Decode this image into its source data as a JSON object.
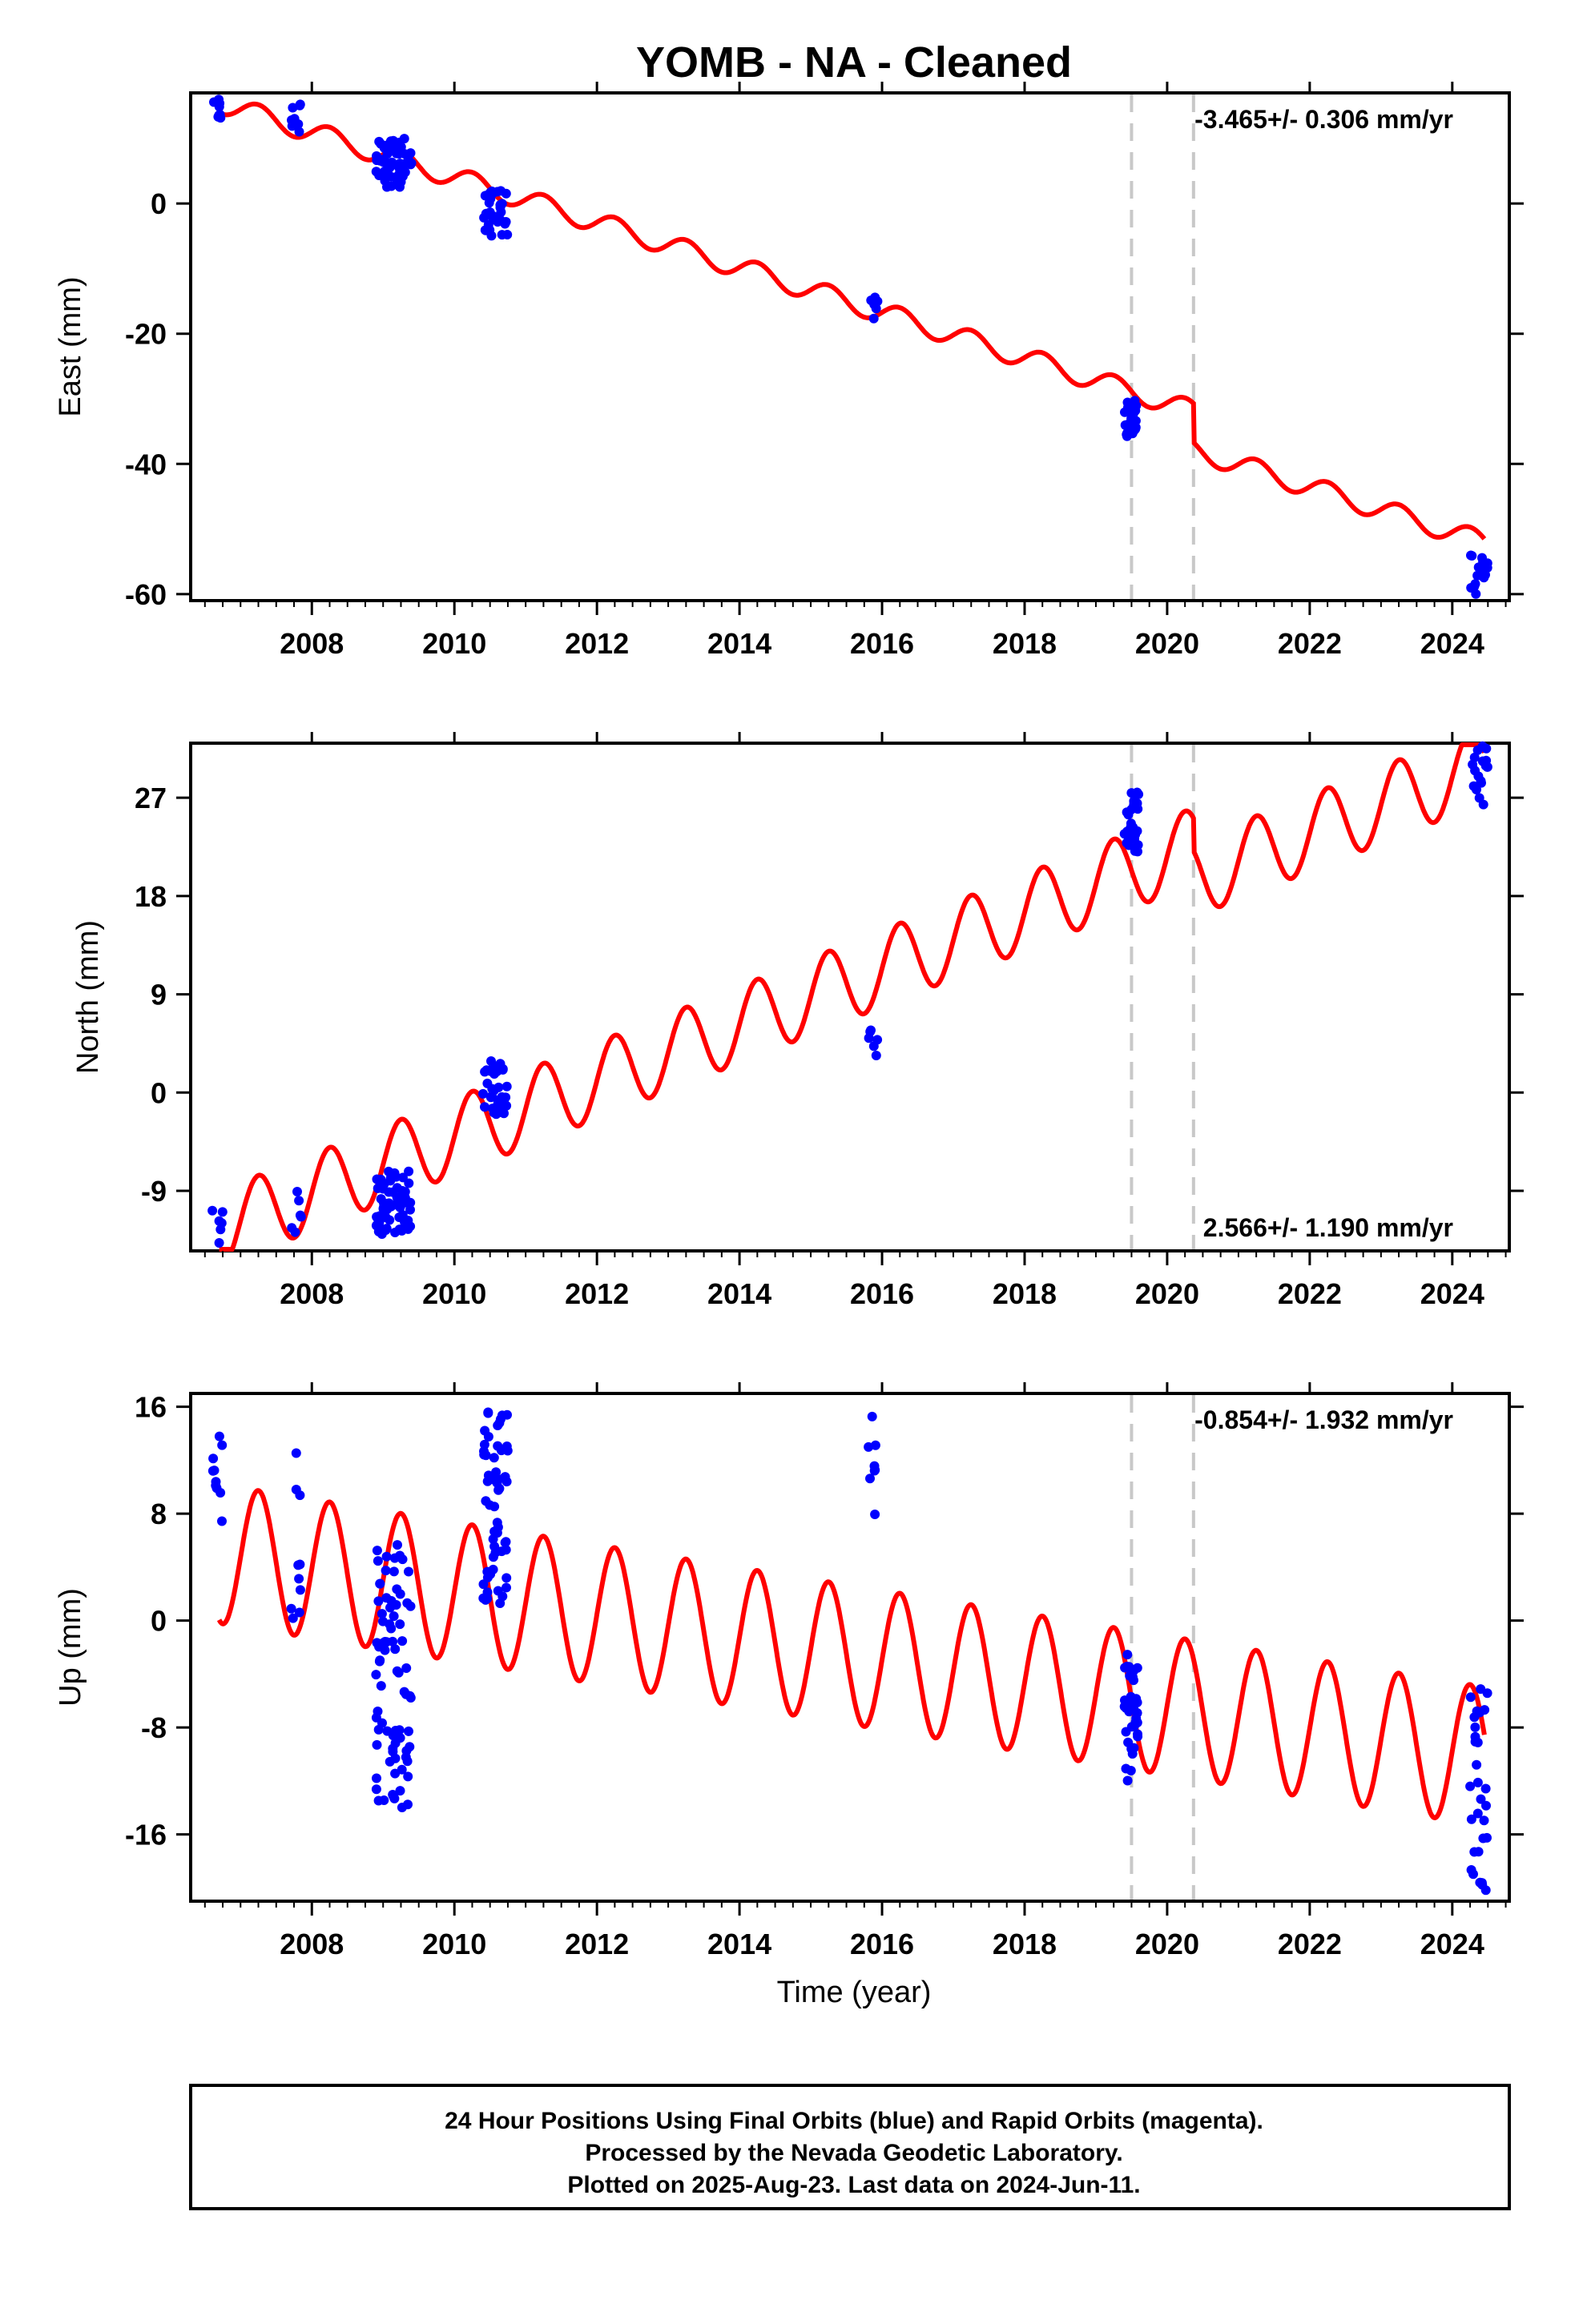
{
  "title": "YOMB  - NA - Cleaned",
  "colors": {
    "final_orbits": "#0000ff",
    "model": "#ff0000",
    "offset_line": "#c8c8c8",
    "frame": "#000000"
  },
  "x_axis": {
    "label": "Time (year)",
    "range": [
      2006.3,
      2024.8
    ],
    "ticks": [
      2008,
      2010,
      2012,
      2014,
      2016,
      2018,
      2020,
      2022,
      2024
    ]
  },
  "chart_data": [
    {
      "type": "scatter",
      "ylabel": "East (mm)",
      "ylim": [
        -61,
        17
      ],
      "yticks": [
        -60,
        -40,
        -20,
        0
      ],
      "rate_text": "-3.465+/- 0.306 mm/yr",
      "rate_position": "top-right",
      "offset_epochs": [
        2019.5,
        2020.37
      ],
      "model_line": {
        "name": "",
        "rate_mm_per_yr": -3.465,
        "intercept_at_2006_7": 15.5,
        "annual_amplitude": 1.6,
        "step_at_2020_37": -6.0
      },
      "clusters": [
        {
          "x": [
            2006.6,
            2006.75
          ],
          "y": [
            12.5,
            16
          ],
          "count": 8
        },
        {
          "x": [
            2007.7,
            2007.85
          ],
          "y": [
            10,
            16
          ],
          "count": 10
        },
        {
          "x": [
            2008.9,
            2009.4
          ],
          "y": [
            2.5,
            10
          ],
          "count": 60
        },
        {
          "x": [
            2010.4,
            2010.75
          ],
          "y": [
            -5,
            2
          ],
          "count": 35
        },
        {
          "x": [
            2015.8,
            2015.95
          ],
          "y": [
            -18,
            -14
          ],
          "count": 6
        },
        {
          "x": [
            2019.4,
            2019.6
          ],
          "y": [
            -36,
            -30
          ],
          "count": 25
        },
        {
          "x": [
            2024.25,
            2024.5
          ],
          "y": [
            -60,
            -54
          ],
          "count": 18
        }
      ]
    },
    {
      "type": "scatter",
      "ylabel": "North (mm)",
      "ylim": [
        -14.5,
        32
      ],
      "yticks": [
        -9,
        0,
        9,
        18,
        27
      ],
      "rate_text": "2.566+/- 1.190 mm/yr",
      "rate_position": "bottom-right",
      "offset_epochs": [
        2019.5,
        2020.37
      ],
      "model_line": {
        "name": "",
        "rate_mm_per_yr": 2.566,
        "intercept_at_2006_7": -12.5,
        "annual_amplitude": 3.5,
        "step_at_2020_37": -3.0
      },
      "clusters": [
        {
          "x": [
            2006.6,
            2006.75
          ],
          "y": [
            -14.5,
            -9
          ],
          "count": 6
        },
        {
          "x": [
            2007.7,
            2007.85
          ],
          "y": [
            -13,
            -9
          ],
          "count": 6
        },
        {
          "x": [
            2008.9,
            2009.4
          ],
          "y": [
            -13,
            -7
          ],
          "count": 60
        },
        {
          "x": [
            2010.4,
            2010.75
          ],
          "y": [
            -2,
            3
          ],
          "count": 35
        },
        {
          "x": [
            2015.8,
            2015.95
          ],
          "y": [
            3,
            6
          ],
          "count": 6
        },
        {
          "x": [
            2019.4,
            2019.6
          ],
          "y": [
            22,
            27.5
          ],
          "count": 25
        },
        {
          "x": [
            2024.25,
            2024.5
          ],
          "y": [
            26,
            32
          ],
          "count": 18
        }
      ]
    },
    {
      "type": "scatter",
      "ylabel": "Up (mm)",
      "ylim": [
        -21,
        17
      ],
      "yticks": [
        -16,
        -8,
        0,
        8,
        16
      ],
      "rate_text": "-0.854+/- 1.932 mm/yr",
      "rate_position": "top-right",
      "offset_epochs": [
        2019.5,
        2020.37
      ],
      "model_line": {
        "name": "",
        "rate_mm_per_yr": -0.854,
        "intercept_at_2006_7": 5.0,
        "annual_amplitude": 5.2,
        "step_at_2020_37": 0
      },
      "clusters": [
        {
          "x": [
            2006.6,
            2006.75
          ],
          "y": [
            7,
            15
          ],
          "count": 10
        },
        {
          "x": [
            2007.7,
            2007.85
          ],
          "y": [
            -1,
            13
          ],
          "count": 10
        },
        {
          "x": [
            2008.9,
            2009.4
          ],
          "y": [
            -14,
            7
          ],
          "count": 80
        },
        {
          "x": [
            2010.4,
            2010.75
          ],
          "y": [
            1,
            16
          ],
          "count": 60
        },
        {
          "x": [
            2015.8,
            2015.95
          ],
          "y": [
            7.5,
            16
          ],
          "count": 8
        },
        {
          "x": [
            2019.4,
            2019.6
          ],
          "y": [
            -12,
            -2
          ],
          "count": 35
        },
        {
          "x": [
            2024.25,
            2024.5
          ],
          "y": [
            -21,
            -4.5
          ],
          "count": 30
        }
      ]
    }
  ],
  "footer": {
    "lines": [
      "24 Hour Positions Using Final Orbits (blue) and Rapid Orbits (magenta).",
      "Processed by the Nevada Geodetic Laboratory.",
      "Plotted on 2025-Aug-23. Last data on 2024-Jun-11."
    ]
  }
}
